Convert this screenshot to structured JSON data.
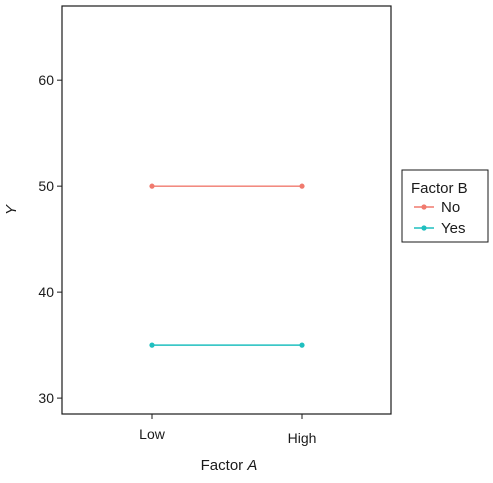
{
  "chart_data": {
    "type": "line",
    "categories": [
      "Low",
      "High"
    ],
    "series": [
      {
        "name": "No",
        "values": [
          50,
          50
        ],
        "color": "#f07a6e"
      },
      {
        "name": "Yes",
        "values": [
          35,
          35
        ],
        "color": "#1fbfbf"
      }
    ],
    "xlabel": "Factor A",
    "xlabel_prefix": "Factor ",
    "xlabel_italic": "A",
    "ylabel": "Y",
    "ylim": [
      28.5,
      67
    ],
    "yticks": [
      30,
      40,
      50,
      60
    ],
    "legend_title": "Factor B",
    "legend_position": "right",
    "grid": false
  }
}
